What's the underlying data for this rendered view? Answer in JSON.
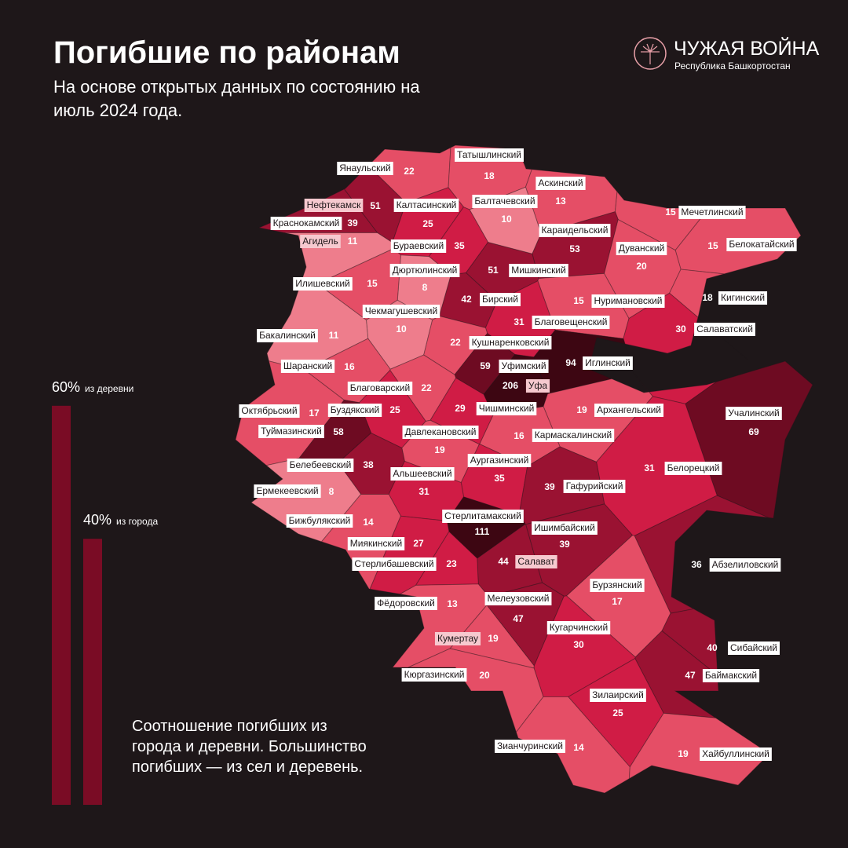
{
  "header": {
    "title": "Погибшие по районам",
    "subtitle": "На основе открытых данных по состоянию на июль 2024 года."
  },
  "logo": {
    "name": "ЧУЖАЯ ВОЙНА",
    "region": "Республика Башкортостан"
  },
  "ratio": {
    "type": "bar",
    "categories": [
      "из деревни",
      "из города"
    ],
    "values": [
      60,
      40
    ],
    "value_labels": [
      "60%",
      "40%"
    ],
    "color": "#7a0c25"
  },
  "note": "Соотношение погибших из города и деревни. Большинство погибших — из сел и деревень.",
  "districts": [
    {
      "name": "Янаульский",
      "value": 22
    },
    {
      "name": "Татышлинский",
      "value": 18
    },
    {
      "name": "Аскинский",
      "value": 13
    },
    {
      "name": "Нефтекамск",
      "value": 51,
      "kind": "city"
    },
    {
      "name": "Калтасинский",
      "value": 25
    },
    {
      "name": "Балтачевский",
      "value": 10
    },
    {
      "name": "Мечетлинский",
      "value": 15
    },
    {
      "name": "Краснокамский",
      "value": 39
    },
    {
      "name": "Караидельский",
      "value": 53
    },
    {
      "name": "Агидель",
      "value": 11,
      "kind": "city"
    },
    {
      "name": "Бураевский",
      "value": 35
    },
    {
      "name": "Белокатайский",
      "value": 15
    },
    {
      "name": "Дуванский",
      "value": 20
    },
    {
      "name": "Дюртюлинский",
      "value": 8
    },
    {
      "name": "Мишкинский",
      "value": 51
    },
    {
      "name": "Илишевский",
      "value": 15
    },
    {
      "name": "Бирский",
      "value": 42
    },
    {
      "name": "Нуримановский",
      "value": 15
    },
    {
      "name": "Кигинский",
      "value": 18
    },
    {
      "name": "Чекмагушевский",
      "value": 10
    },
    {
      "name": "Благовещенский",
      "value": 31
    },
    {
      "name": "Салаватский",
      "value": 30
    },
    {
      "name": "Бакалинский",
      "value": 11
    },
    {
      "name": "Кушнаренковский",
      "value": 22
    },
    {
      "name": "Уфимский",
      "value": 59
    },
    {
      "name": "Иглинский",
      "value": 94
    },
    {
      "name": "Шаранский",
      "value": 16
    },
    {
      "name": "Уфа",
      "value": 206,
      "kind": "city"
    },
    {
      "name": "Благоварский",
      "value": 22
    },
    {
      "name": "Октябрьский",
      "value": 17
    },
    {
      "name": "Буздякский",
      "value": 25
    },
    {
      "name": "Чишминский",
      "value": 29
    },
    {
      "name": "Архангельский",
      "value": 19
    },
    {
      "name": "Учалинский",
      "value": 69
    },
    {
      "name": "Туймазинский",
      "value": 58
    },
    {
      "name": "Давлекановский",
      "value": 19
    },
    {
      "name": "Кармаскалинский",
      "value": 16
    },
    {
      "name": "Белебеевский",
      "value": 38
    },
    {
      "name": "Аургазинский",
      "value": 35
    },
    {
      "name": "Белорецкий",
      "value": 31
    },
    {
      "name": "Альшеевский",
      "value": 31
    },
    {
      "name": "Гафурийский",
      "value": 39
    },
    {
      "name": "Ермекеевский",
      "value": 8
    },
    {
      "name": "Стерлитамакский",
      "value": 111
    },
    {
      "name": "Бижбулякский",
      "value": 14
    },
    {
      "name": "Ишимбайский",
      "value": 39
    },
    {
      "name": "Миякинский",
      "value": 27
    },
    {
      "name": "Салават",
      "value": 44,
      "kind": "city"
    },
    {
      "name": "Стерлибашевский",
      "value": 23
    },
    {
      "name": "Абзелиловский",
      "value": 36
    },
    {
      "name": "Бурзянский",
      "value": 17
    },
    {
      "name": "Мелеузовский",
      "value": 47
    },
    {
      "name": "Фёдоровский",
      "value": 13
    },
    {
      "name": "Кумертау",
      "value": 19,
      "kind": "city"
    },
    {
      "name": "Кугарчинский",
      "value": 30
    },
    {
      "name": "Сибайский",
      "value": 40
    },
    {
      "name": "Баймакский",
      "value": 47
    },
    {
      "name": "Кюргазинский",
      "value": 20
    },
    {
      "name": "Зилаирский",
      "value": 25
    },
    {
      "name": "Зианчуринский",
      "value": 14
    },
    {
      "name": "Хайбуллинский",
      "value": 19
    }
  ]
}
